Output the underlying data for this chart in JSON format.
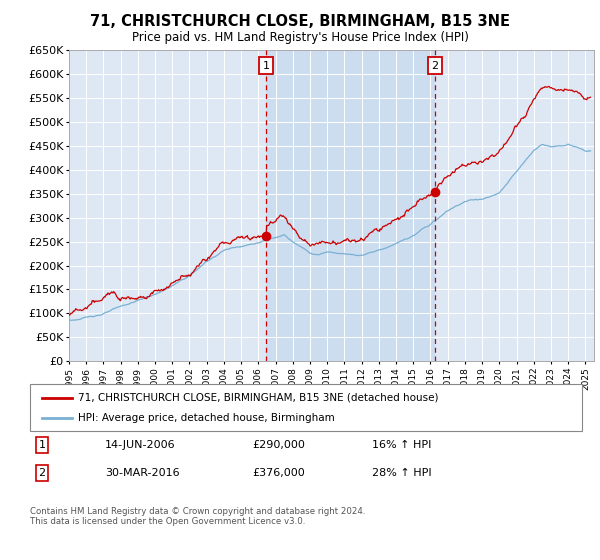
{
  "title": "71, CHRISTCHURCH CLOSE, BIRMINGHAM, B15 3NE",
  "subtitle": "Price paid vs. HM Land Registry's House Price Index (HPI)",
  "legend_line1": "71, CHRISTCHURCH CLOSE, BIRMINGHAM, B15 3NE (detached house)",
  "legend_line2": "HPI: Average price, detached house, Birmingham",
  "transaction1_label": "1",
  "transaction1_date": "14-JUN-2006",
  "transaction1_price": "£290,000",
  "transaction1_pct": "16% ↑ HPI",
  "transaction1_year": 2006.45,
  "transaction1_value": 290000,
  "transaction2_label": "2",
  "transaction2_date": "30-MAR-2016",
  "transaction2_price": "£376,000",
  "transaction2_pct": "28% ↑ HPI",
  "transaction2_year": 2016.25,
  "transaction2_value": 376000,
  "footer": "Contains HM Land Registry data © Crown copyright and database right 2024.\nThis data is licensed under the Open Government Licence v3.0.",
  "ylim": [
    0,
    650000
  ],
  "ytick_max": 650000,
  "xlim_start": 1995,
  "xlim_end": 2025.5,
  "plot_bg": "#dde8f4",
  "highlight_bg": "#cdddf0",
  "red_line_color": "#cc0000",
  "blue_line_color": "#7ab0d4",
  "vline_color": "#cc0000",
  "box_color": "#cc0000",
  "grid_color": "#ffffff",
  "dot_color": "#cc0000"
}
